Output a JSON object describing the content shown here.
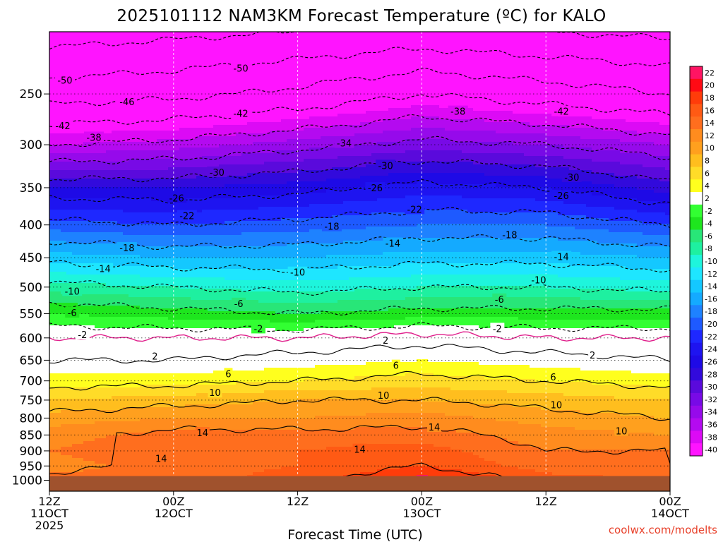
{
  "chart_data": {
    "type": "heatmap",
    "title": "2025101112 NAM3KM Forecast Temperature (ºC) for KALO",
    "xlabel": "Forecast Time (UTC)",
    "ylabel": "",
    "credit": "coolwx.com/modelts",
    "x_range_hours": [
      0,
      60
    ],
    "x_ticks": [
      {
        "hour": 0,
        "line1": "12Z",
        "line2": "11OCT",
        "line3": "2025"
      },
      {
        "hour": 12,
        "line1": "00Z",
        "line2": "12OCT",
        "line3": ""
      },
      {
        "hour": 24,
        "line1": "12Z",
        "line2": "",
        "line3": ""
      },
      {
        "hour": 36,
        "line1": "00Z",
        "line2": "13OCT",
        "line3": ""
      },
      {
        "hour": 48,
        "line1": "12Z",
        "line2": "",
        "line3": ""
      },
      {
        "hour": 60,
        "line1": "00Z",
        "line2": "14OCT",
        "line3": ""
      }
    ],
    "y_axis": "pressure (hPa), log scale, inverted",
    "y_range_hpa": [
      1040,
      200
    ],
    "y_ticks": [
      250,
      300,
      350,
      400,
      450,
      500,
      550,
      600,
      650,
      700,
      750,
      800,
      850,
      900,
      950,
      1000
    ],
    "ground_level_hpa": 985,
    "colorbar_labels": [
      22,
      20,
      18,
      16,
      14,
      12,
      10,
      8,
      6,
      4,
      2,
      -2,
      -4,
      -6,
      -8,
      -10,
      -12,
      -14,
      -16,
      -18,
      -20,
      -22,
      -24,
      -26,
      -28,
      -30,
      -32,
      -34,
      -36,
      -38,
      -40
    ],
    "colorbar_colors": [
      "#ff1463",
      "#ff0a14",
      "#ff3c0a",
      "#ff5a14",
      "#ff6e1e",
      "#ff8c1e",
      "#ffa01e",
      "#ffbe1e",
      "#ffdc28",
      "#ffff1e",
      "#ffffff",
      "#32ff32",
      "#1ee61e",
      "#28e678",
      "#1ef0a0",
      "#1ef5dc",
      "#1ee6ff",
      "#14c8ff",
      "#14aaff",
      "#1e82ff",
      "#1e5aff",
      "#1e28ff",
      "#1e14f0",
      "#1e0ae6",
      "#320adc",
      "#5a0adc",
      "#780ae6",
      "#960aeb",
      "#b40af0",
      "#dc0af5",
      "#ff14ff"
    ],
    "temperature_profiles": [
      {
        "hour": 0,
        "levels_hpa": [
          1000,
          950,
          900,
          850,
          800,
          750,
          700,
          650,
          600,
          550,
          500,
          450,
          400,
          350,
          300,
          250,
          200
        ],
        "temp_c": [
          15,
          13,
          14,
          13,
          11,
          8,
          5,
          2,
          0,
          -4,
          -9,
          -15,
          -21,
          -28,
          -38,
          -48,
          -56
        ]
      },
      {
        "hour": 12,
        "levels_hpa": [
          1000,
          950,
          900,
          850,
          800,
          750,
          700,
          650,
          600,
          550,
          500,
          450,
          400,
          350,
          300,
          250,
          200
        ],
        "temp_c": [
          15,
          15,
          16,
          15,
          12,
          9,
          5,
          2,
          0,
          -5,
          -10,
          -16,
          -22,
          -28,
          -37,
          -47,
          -55
        ]
      },
      {
        "hour": 24,
        "levels_hpa": [
          1000,
          950,
          900,
          850,
          800,
          750,
          700,
          650,
          600,
          550,
          500,
          450,
          400,
          350,
          300,
          250,
          200
        ],
        "temp_c": [
          17,
          16,
          16,
          15,
          12,
          10,
          6,
          3,
          0,
          -6,
          -11,
          -16,
          -21,
          -27,
          -35,
          -45,
          -54
        ]
      },
      {
        "hour": 36,
        "levels_hpa": [
          1000,
          950,
          900,
          850,
          800,
          750,
          700,
          650,
          600,
          550,
          500,
          450,
          400,
          350,
          300,
          250,
          200
        ],
        "temp_c": [
          21,
          18,
          17,
          15,
          13,
          10,
          7,
          4,
          1,
          -5,
          -10,
          -15,
          -20,
          -25,
          -33,
          -42,
          -53
        ]
      },
      {
        "hour": 48,
        "levels_hpa": [
          1000,
          950,
          900,
          850,
          800,
          750,
          700,
          650,
          600,
          550,
          500,
          450,
          400,
          350,
          300,
          250,
          200
        ],
        "temp_c": [
          17,
          15,
          14,
          13,
          11,
          9,
          6,
          3,
          0,
          -5,
          -10,
          -15,
          -20,
          -26,
          -34,
          -44,
          -54
        ]
      },
      {
        "hour": 60,
        "levels_hpa": [
          1000,
          950,
          900,
          850,
          800,
          750,
          700,
          650,
          600,
          550,
          500,
          450,
          400,
          350,
          300,
          250,
          200
        ],
        "temp_c": [
          16,
          14,
          14,
          12,
          10,
          8,
          5,
          2,
          0,
          -5,
          -11,
          -16,
          -22,
          -29,
          -36,
          -46,
          -55
        ]
      }
    ],
    "contour_labels": [
      {
        "hour": 1.5,
        "hpa": 238,
        "text": "-50"
      },
      {
        "hour": 18.5,
        "hpa": 228,
        "text": "-50"
      },
      {
        "hour": 7.5,
        "hpa": 257,
        "text": "-46"
      },
      {
        "hour": 1.3,
        "hpa": 280,
        "text": "-42"
      },
      {
        "hour": 18.5,
        "hpa": 268,
        "text": "-42"
      },
      {
        "hour": 49.5,
        "hpa": 266,
        "text": "-42"
      },
      {
        "hour": 39.5,
        "hpa": 266,
        "text": "-38"
      },
      {
        "hour": 4.3,
        "hpa": 292,
        "text": "-38"
      },
      {
        "hour": 28.5,
        "hpa": 298,
        "text": "-34"
      },
      {
        "hour": 32.5,
        "hpa": 323,
        "text": "-30"
      },
      {
        "hour": 16.2,
        "hpa": 331,
        "text": "-30"
      },
      {
        "hour": 50.5,
        "hpa": 337,
        "text": "-30"
      },
      {
        "hour": 31.5,
        "hpa": 350,
        "text": "-26"
      },
      {
        "hour": 12.3,
        "hpa": 363,
        "text": "-26"
      },
      {
        "hour": 49.5,
        "hpa": 360,
        "text": "-26"
      },
      {
        "hour": 35.3,
        "hpa": 378,
        "text": "-22"
      },
      {
        "hour": 13.3,
        "hpa": 387,
        "text": "-22"
      },
      {
        "hour": 27.3,
        "hpa": 402,
        "text": "-18"
      },
      {
        "hour": 44.5,
        "hpa": 414,
        "text": "-18"
      },
      {
        "hour": 7.5,
        "hpa": 434,
        "text": "-18"
      },
      {
        "hour": 33.2,
        "hpa": 427,
        "text": "-14"
      },
      {
        "hour": 49.5,
        "hpa": 448,
        "text": "-14"
      },
      {
        "hour": 5.2,
        "hpa": 468,
        "text": "-14"
      },
      {
        "hour": 24,
        "hpa": 474,
        "text": "-10"
      },
      {
        "hour": 47.3,
        "hpa": 487,
        "text": "-10"
      },
      {
        "hour": 2.2,
        "hpa": 507,
        "text": "-10"
      },
      {
        "hour": 18.3,
        "hpa": 530,
        "text": "-6"
      },
      {
        "hour": 43.5,
        "hpa": 522,
        "text": "-6"
      },
      {
        "hour": 2.2,
        "hpa": 548,
        "text": "-6"
      },
      {
        "hour": 20.2,
        "hpa": 580,
        "text": "-2"
      },
      {
        "hour": 43.3,
        "hpa": 580,
        "text": "-2"
      },
      {
        "hour": 3.2,
        "hpa": 593,
        "text": "-2"
      },
      {
        "hour": 32.5,
        "hpa": 605,
        "text": "2"
      },
      {
        "hour": 10.2,
        "hpa": 640,
        "text": "2"
      },
      {
        "hour": 52.5,
        "hpa": 638,
        "text": "2"
      },
      {
        "hour": 33.5,
        "hpa": 662,
        "text": "6"
      },
      {
        "hour": 17.3,
        "hpa": 682,
        "text": "6"
      },
      {
        "hour": 48.7,
        "hpa": 690,
        "text": "6"
      },
      {
        "hour": 16,
        "hpa": 730,
        "text": "10"
      },
      {
        "hour": 32.3,
        "hpa": 737,
        "text": "10"
      },
      {
        "hour": 49,
        "hpa": 763,
        "text": "10"
      },
      {
        "hour": 55.3,
        "hpa": 838,
        "text": "10"
      },
      {
        "hour": 14.8,
        "hpa": 843,
        "text": "14"
      },
      {
        "hour": 37.2,
        "hpa": 826,
        "text": "14"
      },
      {
        "hour": 30,
        "hpa": 895,
        "text": "14"
      },
      {
        "hour": 10.8,
        "hpa": 924,
        "text": "14"
      }
    ]
  }
}
